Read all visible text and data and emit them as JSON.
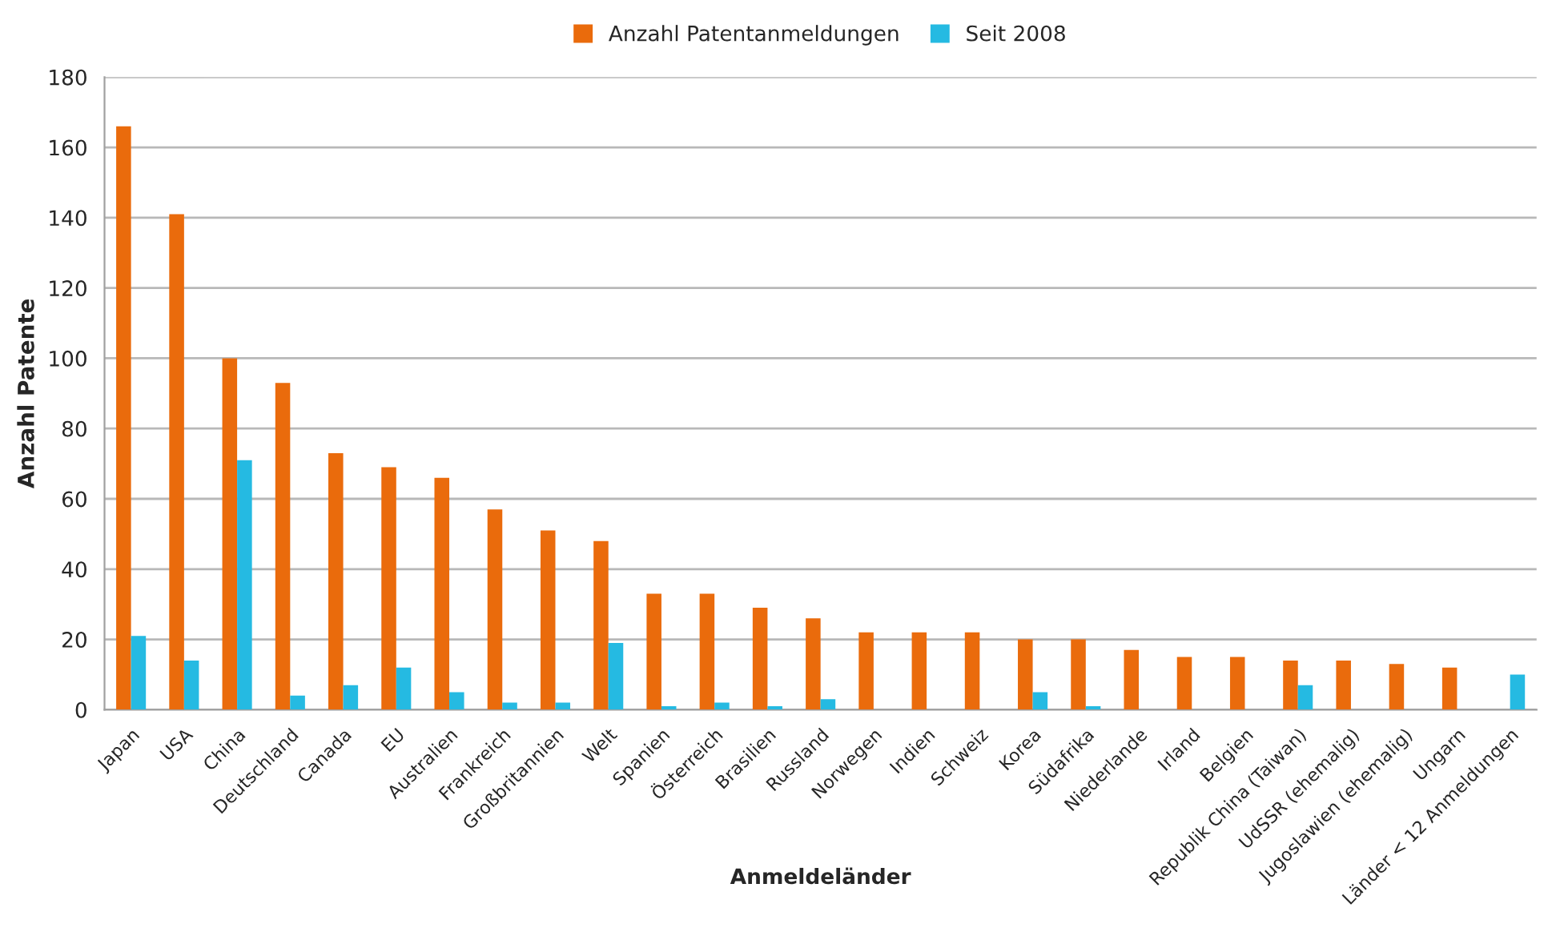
{
  "chart_data": {
    "type": "bar",
    "xlabel": "Anmeldeländer",
    "ylabel": "Anzahl Patente",
    "categories": [
      "Japan",
      "USA",
      "China",
      "Deutschland",
      "Canada",
      "EU",
      "Australien",
      "Frankreich",
      "Großbritannien",
      "Welt",
      "Spanien",
      "Österreich",
      "Brasilien",
      "Russland",
      "Norwegen",
      "Indien",
      "Schweiz",
      "Korea",
      "Südafrika",
      "Niederlande",
      "Irland",
      "Belgien",
      "Republik China (Taiwan)",
      "UdSSR (ehemalig)",
      "Jugoslawien (ehemalig)",
      "Ungarn",
      "Länder < 12 Anmeldungen"
    ],
    "series": [
      {
        "name": "Anzahl Patentanmeldungen",
        "color": "#ea6b0c",
        "values": [
          166,
          141,
          100,
          93,
          73,
          69,
          66,
          57,
          51,
          48,
          33,
          33,
          29,
          26,
          22,
          22,
          22,
          20,
          20,
          17,
          15,
          15,
          14,
          14,
          13,
          12,
          null
        ]
      },
      {
        "name": "Seit 2008",
        "color": "#25bae2",
        "values": [
          21,
          14,
          71,
          4,
          7,
          12,
          5,
          2,
          2,
          19,
          1,
          2,
          1,
          3,
          null,
          null,
          null,
          5,
          1,
          null,
          null,
          null,
          7,
          null,
          null,
          null,
          10
        ]
      }
    ],
    "ylim": [
      0,
      180
    ],
    "yticks": [
      0,
      20,
      40,
      60,
      80,
      100,
      120,
      140,
      160,
      180
    ],
    "grid": "y",
    "legend": "top"
  }
}
